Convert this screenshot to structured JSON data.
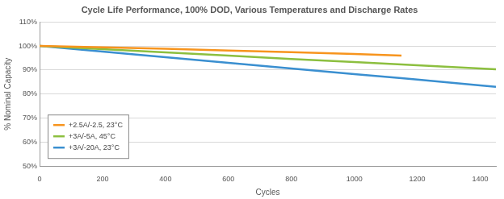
{
  "chart_data": {
    "type": "line",
    "title": "Cycle Life Performance, 100% DOD, Various Temperatures and Discharge Rates",
    "x_label": "Cycles",
    "y_label": "% Nominal Capacity",
    "x": [
      0,
      200,
      400,
      600,
      800,
      1000,
      1150,
      1200,
      1400,
      1450
    ],
    "series": [
      {
        "name": "+2.5A/-2.5, 23°C",
        "color": "#f7941d",
        "values": [
          100,
          99.4,
          98.8,
          98.1,
          97.4,
          96.7,
          96.0,
          null,
          null,
          null
        ]
      },
      {
        "name": "+3A/-5A, 45°C",
        "color": "#8cbf3f",
        "values": [
          100,
          98.7,
          97.3,
          96.0,
          94.6,
          93.3,
          92.3,
          92.0,
          90.6,
          90.3
        ]
      },
      {
        "name": "+3A/-20A, 23°C",
        "color": "#3a8fd0",
        "values": [
          100,
          97.7,
          95.3,
          93.0,
          90.6,
          88.3,
          86.6,
          86.0,
          83.6,
          83.0
        ]
      }
    ],
    "xlim": [
      0,
      1450
    ],
    "xticks": [
      0,
      200,
      400,
      600,
      800,
      1000,
      1200,
      1400
    ],
    "ylim": [
      50,
      110
    ],
    "yticks": [
      {
        "value": 50,
        "label": "50%"
      },
      {
        "value": 60,
        "label": "60%"
      },
      {
        "value": 70,
        "label": "70%"
      },
      {
        "value": 80,
        "label": "80%"
      },
      {
        "value": 90,
        "label": "90%"
      },
      {
        "value": 100,
        "label": "100%"
      },
      {
        "value": 110,
        "label": "110%"
      }
    ],
    "grid": true,
    "legend": "lower left"
  }
}
